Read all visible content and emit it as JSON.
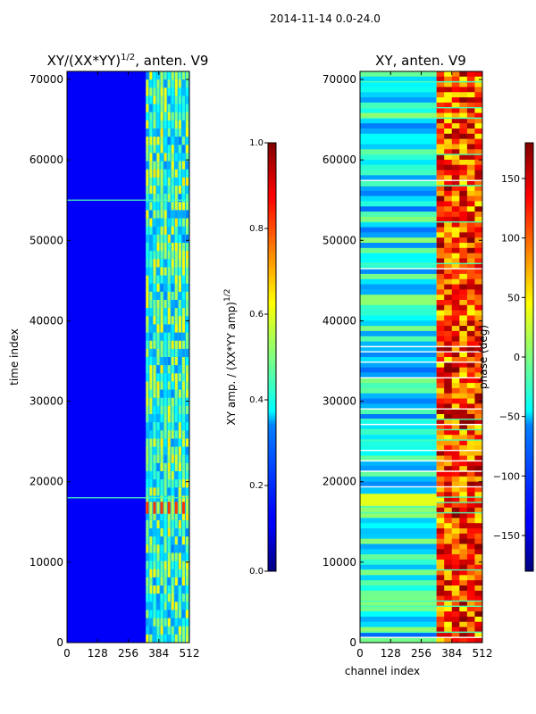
{
  "suptitle": "2014-11-14 0.0-24.0",
  "chart_data": [
    {
      "type": "heatmap",
      "title": "XY/(XX*YY)^1/2, anten. V9",
      "title_main": "XY/(XX*YY)",
      "title_exp": "1/2",
      "title_tail": ", anten. V9",
      "xlabel": "",
      "ylabel": "time index",
      "xlim": [
        0,
        512
      ],
      "ylim": [
        0,
        71000
      ],
      "xticks": [
        0,
        128,
        256,
        384,
        512
      ],
      "yticks": [
        0,
        10000,
        20000,
        30000,
        40000,
        50000,
        60000,
        70000
      ],
      "colorbar": {
        "label_main": "XY amp. / (XX*YY amp)",
        "label_exp": "1/2",
        "range": [
          0.0,
          1.0
        ],
        "ticks": [
          "0.0",
          "0.2",
          "0.4",
          "0.6",
          "0.8",
          "1.0"
        ],
        "colormap": "jet"
      },
      "bright_band_channels": [
        330,
        512
      ],
      "hot_band_rows": [
        16000,
        17500
      ],
      "horizontal_lines": [
        18000,
        55000
      ]
    },
    {
      "type": "heatmap",
      "title": "XY, anten. V9",
      "xlabel": "channel index",
      "ylabel": "",
      "xlim": [
        0,
        512
      ],
      "ylim": [
        0,
        71000
      ],
      "xticks": [
        0,
        128,
        256,
        384,
        512
      ],
      "yticks": [
        0,
        10000,
        20000,
        30000,
        40000,
        50000,
        60000,
        70000
      ],
      "colorbar": {
        "label": "phase (deg)",
        "range": [
          -180,
          180
        ],
        "ticks": [
          "−150",
          "−100",
          "−50",
          "0",
          "50",
          "100",
          "150"
        ],
        "tick_values": [
          -150,
          -100,
          -50,
          0,
          50,
          100,
          150
        ],
        "colormap": "jet"
      },
      "hot_band_channels": [
        320,
        512
      ],
      "warm_band_rows": [
        17000,
        18500
      ]
    }
  ]
}
